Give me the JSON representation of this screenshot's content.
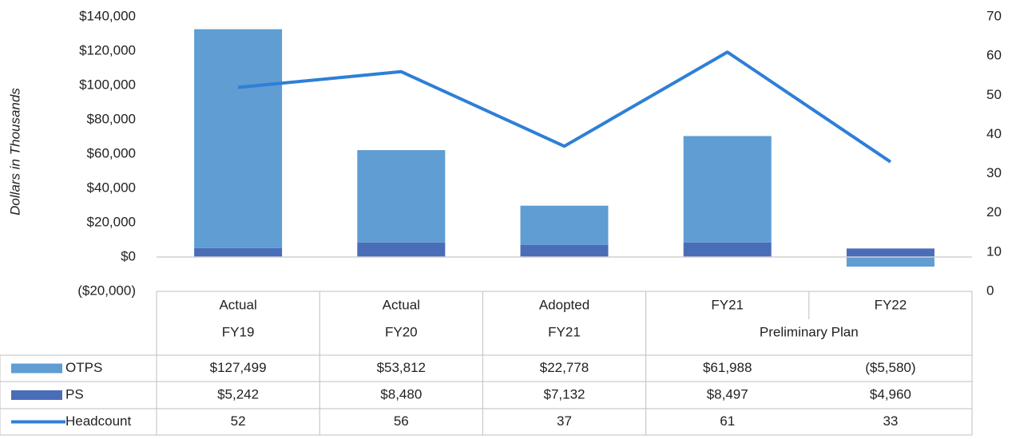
{
  "chart_data": {
    "type": "bar",
    "y_axis_label": "Dollars in Thousands",
    "categories": [
      "Actual",
      "Actual",
      "Adopted",
      "FY21",
      "FY22"
    ],
    "category_sublabels": [
      "FY19",
      "FY20",
      "FY21",
      null,
      null
    ],
    "category_groups": [
      {
        "label": "Preliminary Plan",
        "members": [
          3,
          4
        ]
      }
    ],
    "stacked": true,
    "series": [
      {
        "name": "PS",
        "color": "#4a6db8",
        "values": [
          5242,
          8480,
          7132,
          8497,
          4960
        ],
        "value_labels": [
          "$5,242",
          "$8,480",
          "$7,132",
          "$8,497",
          "$4,960"
        ]
      },
      {
        "name": "OTPS",
        "color": "#5f9dd3",
        "values": [
          127499,
          53812,
          22778,
          61988,
          -5580
        ],
        "value_labels": [
          "$127,499",
          "$53,812",
          "$22,778",
          "$61,988",
          "($5,580)"
        ]
      },
      {
        "name": "Headcount",
        "type": "line",
        "axis": "y2",
        "color": "#2e7fd6",
        "values": [
          52,
          56,
          37,
          61,
          33
        ]
      }
    ],
    "table_row_order": [
      "OTPS",
      "PS",
      "Headcount"
    ],
    "ylim": [
      -20000,
      140000
    ],
    "yticks": [
      {
        "value": -20000,
        "label": "($20,000)"
      },
      {
        "value": 0,
        "label": "$0"
      },
      {
        "value": 20000,
        "label": "$20,000"
      },
      {
        "value": 40000,
        "label": "$40,000"
      },
      {
        "value": 60000,
        "label": "$60,000"
      },
      {
        "value": 80000,
        "label": "$80,000"
      },
      {
        "value": 100000,
        "label": "$100,000"
      },
      {
        "value": 120000,
        "label": "$120,000"
      },
      {
        "value": 140000,
        "label": "$140,000"
      }
    ],
    "y2lim": [
      0,
      70
    ],
    "y2ticks": [
      0,
      10,
      20,
      30,
      40,
      50,
      60,
      70
    ]
  }
}
